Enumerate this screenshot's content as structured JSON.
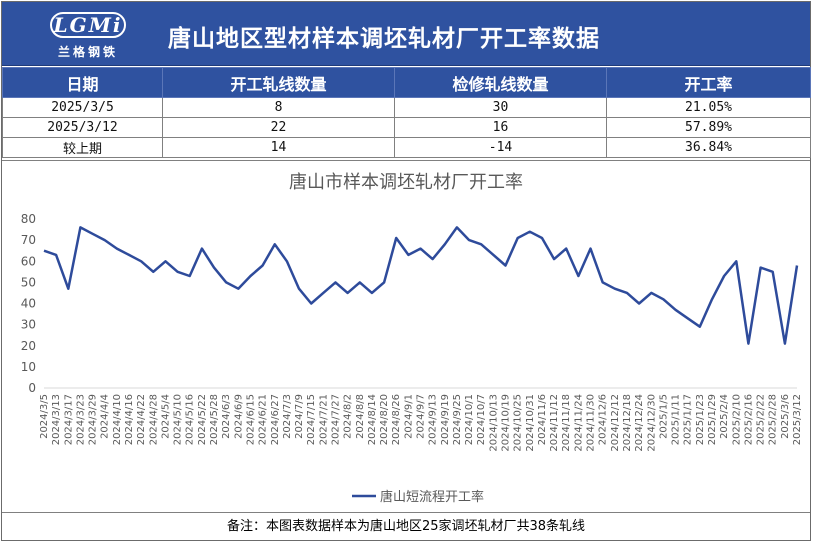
{
  "header": {
    "logo_mark": "LGMi",
    "logo_sub": "兰格钢铁",
    "title": "唐山地区型材样本调坯轧材厂开工率数据"
  },
  "table": {
    "columns": [
      "日期",
      "开工轧线数量",
      "检修轧线数量",
      "开工率"
    ],
    "rows": [
      [
        "2025/3/5",
        "8",
        "30",
        "21.05%"
      ],
      [
        "2025/3/12",
        "22",
        "16",
        "57.89%"
      ],
      [
        "较上期",
        "14",
        "-14",
        "36.84%"
      ]
    ]
  },
  "footer": {
    "note": "备注：本图表数据样本为唐山地区25家调坯轧材厂共38条轧线"
  },
  "colors": {
    "header_bg": "#2f52a0",
    "series_line": "#2e4b9b"
  },
  "chart_data": {
    "type": "line",
    "title": "唐山市样本调坯轧材厂开工率",
    "xlabel": "",
    "ylabel": "",
    "ylim": [
      0,
      80
    ],
    "yticks": [
      0,
      10,
      20,
      30,
      40,
      50,
      60,
      70,
      80
    ],
    "grid": false,
    "legend_position": "bottom",
    "x": [
      "2024/3/5",
      "2024/3/13",
      "2024/3/17",
      "2024/3/23",
      "2024/3/29",
      "2024/4/4",
      "2024/4/10",
      "2024/4/16",
      "2024/4/22",
      "2024/4/28",
      "2024/5/4",
      "2024/5/10",
      "2024/5/16",
      "2024/5/22",
      "2024/5/28",
      "2024/6/3",
      "2024/6/9",
      "2024/6/15",
      "2024/6/21",
      "2024/6/27",
      "2024/7/3",
      "2024/7/9",
      "2024/7/15",
      "2024/7/21",
      "2024/7/27",
      "2024/8/2",
      "2024/8/8",
      "2024/8/14",
      "2024/8/20",
      "2024/8/26",
      "2024/9/1",
      "2024/9/7",
      "2024/9/13",
      "2024/9/19",
      "2024/9/25",
      "2024/10/1",
      "2024/10/7",
      "2024/10/13",
      "2024/10/19",
      "2024/10/25",
      "2024/10/31",
      "2024/11/6",
      "2024/11/12",
      "2024/11/18",
      "2024/11/24",
      "2024/11/30",
      "2024/12/6",
      "2024/12/12",
      "2024/12/18",
      "2024/12/24",
      "2024/12/30",
      "2025/1/5",
      "2025/1/11",
      "2025/1/17",
      "2025/1/23",
      "2025/1/29",
      "2025/2/4",
      "2025/2/10",
      "2025/2/16",
      "2025/2/22",
      "2025/2/28",
      "2025/3/6",
      "2025/3/12"
    ],
    "series": [
      {
        "name": "唐山短流程开工率",
        "values": [
          65,
          63,
          47,
          76,
          73,
          70,
          66,
          63,
          60,
          55,
          60,
          55,
          53,
          66,
          57,
          50,
          47,
          53,
          58,
          68,
          60,
          47,
          40,
          45,
          50,
          45,
          50,
          45,
          50,
          71,
          63,
          66,
          61,
          68,
          76,
          70,
          68,
          63,
          58,
          71,
          74,
          71,
          61,
          66,
          53,
          66,
          50,
          47,
          45,
          40,
          45,
          42,
          37,
          33,
          29,
          42,
          53,
          60,
          21,
          57,
          55,
          21,
          58
        ]
      }
    ]
  }
}
